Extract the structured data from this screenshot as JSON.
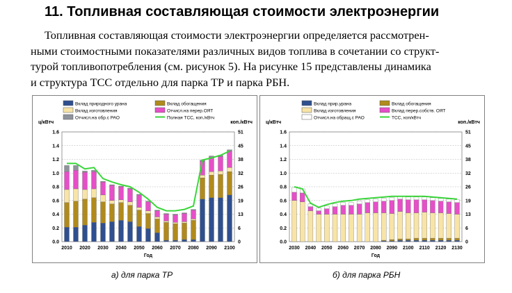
{
  "heading": "11. Топливная составляющая стоимости электроэнергии",
  "paragraph_lines": [
    "Топливная составляющая стоимости электроэнергии определяется рассмотрен-",
    "ными стоимостными показателями различных видов топлива в сочетании со структ-",
    "турой топливопотребления (см. рисунок 5). На рисунке 15 представлены динамика",
    "и структура ТСС отдельно для парка ТР и парка РБН."
  ],
  "captions": {
    "a": "а) для парка ТР",
    "b": "б) для парка РБН"
  },
  "colors": {
    "navy": "#2f4f8f",
    "olive": "#b08a1c",
    "cream": "#f8e4a6",
    "magenta": "#e64fc8",
    "gray": "#8f939b",
    "green": "#3ad63a",
    "white_seg": "#ffffff"
  },
  "chart_data": [
    {
      "type": "bar",
      "stacked": true,
      "ylabel_left": "ц/кВтч",
      "ylabel_right": "коп./кВтч",
      "xlabel": "Год",
      "ylim": [
        0,
        1.6
      ],
      "yticks": [
        "0.0",
        "0.2",
        "0.4",
        "0.6",
        "0.8",
        "1.0",
        "1.2",
        "1.4",
        "1.6"
      ],
      "right_ticks": [
        "0",
        "6",
        "13",
        "19",
        "26",
        "32",
        "38",
        "45",
        "51"
      ],
      "x": [
        2010,
        2015,
        2020,
        2025,
        2030,
        2035,
        2040,
        2045,
        2050,
        2055,
        2060,
        2065,
        2070,
        2075,
        2080,
        2085,
        2090,
        2095,
        2100
      ],
      "x_tick_labels": [
        "2010",
        "2020",
        "2030",
        "2040",
        "2050",
        "2060",
        "2070",
        "2080",
        "2090",
        "2100"
      ],
      "legend": [
        {
          "name": "Вклад природного урана",
          "color": "#2f4f8f"
        },
        {
          "name": "Вклад обогащения",
          "color": "#b08a1c"
        },
        {
          "name": "Вклад изготовления",
          "color": "#f8e4a6"
        },
        {
          "name": "Отчисл.на перер.ОЯТ",
          "color": "#e64fc8"
        },
        {
          "name": "Отчисл.на обр.с РАО",
          "color": "#8f939b"
        },
        {
          "name": "Полная ТСС, коп./кВтч",
          "color": "#3ad63a"
        }
      ],
      "series": [
        {
          "name": "Вклад природного урана",
          "values": [
            0.21,
            0.21,
            0.24,
            0.28,
            0.27,
            0.29,
            0.31,
            0.29,
            0.22,
            0.19,
            0.13,
            0.02,
            0.02,
            0.03,
            0.03,
            0.62,
            0.64,
            0.64,
            0.68
          ]
        },
        {
          "name": "Вклад обогащения",
          "values": [
            0.36,
            0.38,
            0.38,
            0.36,
            0.31,
            0.26,
            0.26,
            0.24,
            0.24,
            0.22,
            0.2,
            0.26,
            0.24,
            0.24,
            0.28,
            0.31,
            0.33,
            0.34,
            0.34
          ]
        },
        {
          "name": "Вклад изготовления",
          "values": [
            0.19,
            0.18,
            0.14,
            0.13,
            0.1,
            0.05,
            0.04,
            0.05,
            0.04,
            0.04,
            0.03,
            0.02,
            0.02,
            0.02,
            0.02,
            0.04,
            0.05,
            0.05,
            0.06
          ]
        },
        {
          "name": "Отчисл.на перер.ОЯТ",
          "values": [
            0.26,
            0.27,
            0.25,
            0.25,
            0.19,
            0.22,
            0.19,
            0.19,
            0.18,
            0.13,
            0.09,
            0.1,
            0.11,
            0.12,
            0.13,
            0.2,
            0.21,
            0.21,
            0.24
          ]
        },
        {
          "name": "Отчисл.на обр.с РАО",
          "values": [
            0.09,
            0.07,
            0.02,
            0.02,
            0.01,
            0.01,
            0.01,
            0.01,
            0.01,
            0.01,
            0.01,
            0.01,
            0.01,
            0.01,
            0.01,
            0.02,
            0.02,
            0.02,
            0.02
          ]
        }
      ],
      "total_line": {
        "name": "Полная ТСС, коп./кВтч",
        "values": [
          1.14,
          1.14,
          1.06,
          1.08,
          0.92,
          0.87,
          0.83,
          0.8,
          0.72,
          0.62,
          0.5,
          0.45,
          0.45,
          0.47,
          0.52,
          1.19,
          1.22,
          1.26,
          1.32
        ]
      }
    },
    {
      "type": "bar",
      "stacked": true,
      "ylabel_left": "ц/кВтч",
      "ylabel_right": "коп./кВтч",
      "xlabel": "Год",
      "ylim": [
        0,
        1.6
      ],
      "yticks": [
        "0.0",
        "0.2",
        "0.4",
        "0.6",
        "0.8",
        "1.0",
        "1.2",
        "1.4",
        "1.6"
      ],
      "right_ticks": [
        "0",
        "6",
        "13",
        "19",
        "26",
        "32",
        "38",
        "45",
        "51"
      ],
      "x": [
        2030,
        2035,
        2040,
        2045,
        2050,
        2055,
        2060,
        2065,
        2070,
        2075,
        2080,
        2085,
        2090,
        2095,
        2100,
        2105,
        2110,
        2115,
        2120,
        2125,
        2130
      ],
      "x_tick_labels": [
        "2030",
        "2040",
        "2050",
        "2060",
        "2070",
        "2080",
        "2090",
        "2100",
        "2110",
        "2120",
        "2130"
      ],
      "legend": [
        {
          "name": "Вклад прир.урана",
          "color": "#2f4f8f"
        },
        {
          "name": "Вклад обогащения",
          "color": "#b08a1c"
        },
        {
          "name": "Вклад изготовления",
          "color": "#f8e4a6"
        },
        {
          "name": "Вклад перер.собств. ОЯТ",
          "color": "#e64fc8"
        },
        {
          "name": "Отчисл.на обращ.с РАО",
          "color": "#ffffff"
        },
        {
          "name": "ТСС, коп/кВтч",
          "color": "#3ad63a"
        }
      ],
      "series": [
        {
          "name": "Вклад прир.урана",
          "values": [
            0,
            0,
            0,
            0,
            0,
            0,
            0,
            0,
            0,
            0,
            0,
            0.01,
            0.01,
            0.02,
            0.02,
            0.02,
            0.02,
            0.02,
            0.02,
            0.02,
            0.02
          ]
        },
        {
          "name": "Вклад обогащения",
          "values": [
            0,
            0,
            0,
            0,
            0,
            0,
            0,
            0,
            0,
            0,
            0,
            0.01,
            0.02,
            0.02,
            0.02,
            0.03,
            0.03,
            0.03,
            0.03,
            0.03,
            0.03
          ]
        },
        {
          "name": "Вклад изготовления",
          "values": [
            0.6,
            0.58,
            0.45,
            0.4,
            0.4,
            0.4,
            0.4,
            0.4,
            0.4,
            0.42,
            0.42,
            0.4,
            0.38,
            0.4,
            0.38,
            0.37,
            0.38,
            0.37,
            0.37,
            0.36,
            0.35
          ]
        },
        {
          "name": "Вклад перер.собств. ОЯТ",
          "values": [
            0.12,
            0.13,
            0.06,
            0.05,
            0.08,
            0.11,
            0.13,
            0.13,
            0.15,
            0.15,
            0.16,
            0.17,
            0.19,
            0.18,
            0.19,
            0.19,
            0.18,
            0.18,
            0.17,
            0.17,
            0.17
          ]
        },
        {
          "name": "Отчисл.на обращ.с РАО",
          "values": [
            0.07,
            0.06,
            0.04,
            0.04,
            0.04,
            0.04,
            0.04,
            0.04,
            0.04,
            0.04,
            0.04,
            0.04,
            0.04,
            0.04,
            0.04,
            0.04,
            0.04,
            0.04,
            0.04,
            0.04,
            0.04
          ]
        }
      ],
      "total_line": {
        "name": "ТСС, коп/кВтч",
        "values": [
          0.8,
          0.77,
          0.56,
          0.5,
          0.54,
          0.57,
          0.59,
          0.6,
          0.62,
          0.63,
          0.64,
          0.65,
          0.66,
          0.66,
          0.66,
          0.66,
          0.66,
          0.65,
          0.64,
          0.63,
          0.62
        ]
      }
    }
  ]
}
